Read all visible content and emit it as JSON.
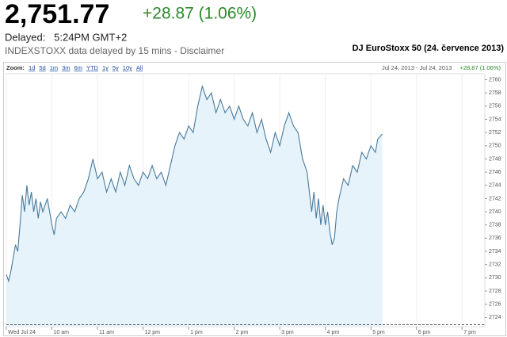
{
  "header": {
    "price": "2,751.77",
    "change": "+28.87 (1.06%)",
    "delayed": "Delayed:   5:24PM GMT+2",
    "disclaimer": "INDEXSTOXX data delayed by 15 mins - Disclaimer"
  },
  "toolbar": {
    "zoom_label": "Zoom:",
    "zoom_options": [
      "1d",
      "5d",
      "1m",
      "3m",
      "6m",
      "YTD",
      "1y",
      "5y",
      "10y",
      "All"
    ],
    "range": "Jul 24, 2013 - Jul 24, 2013",
    "change": "+28.87 (1.06%)"
  },
  "chart_data": {
    "type": "line",
    "title": "DJ EuroStoxx 50 (24. července 2013)",
    "color": "#4a7a9c",
    "fill": "#e6f3fb",
    "grid": true,
    "x": [
      9.0,
      9.05,
      9.1,
      9.15,
      9.2,
      9.25,
      9.3,
      9.35,
      9.4,
      9.45,
      9.5,
      9.55,
      9.6,
      9.65,
      9.7,
      9.75,
      9.8,
      9.9,
      10.0,
      10.05,
      10.1,
      10.2,
      10.3,
      10.4,
      10.5,
      10.6,
      10.7,
      10.8,
      10.9,
      11.0,
      11.1,
      11.2,
      11.3,
      11.4,
      11.5,
      11.6,
      11.7,
      11.8,
      11.9,
      12.0,
      12.1,
      12.2,
      12.3,
      12.4,
      12.5,
      12.6,
      12.7,
      12.8,
      12.9,
      13.0,
      13.1,
      13.2,
      13.3,
      13.4,
      13.5,
      13.6,
      13.7,
      13.8,
      13.9,
      14.0,
      14.1,
      14.2,
      14.3,
      14.4,
      14.5,
      14.6,
      14.7,
      14.8,
      14.9,
      15.0,
      15.1,
      15.2,
      15.3,
      15.4,
      15.5,
      15.6,
      15.7,
      15.75,
      15.8,
      15.85,
      15.9,
      15.95,
      16.0,
      16.05,
      16.1,
      16.15,
      16.2,
      16.25,
      16.3,
      16.4,
      16.5,
      16.6,
      16.7,
      16.8,
      16.9,
      17.0,
      17.1,
      17.15,
      17.25
    ],
    "values": [
      2730.5,
      2729.5,
      2731,
      2733,
      2735,
      2734,
      2738,
      2742.5,
      2740,
      2744,
      2741,
      2743,
      2740,
      2742,
      2739,
      2741.5,
      2740,
      2742,
      2738,
      2736.5,
      2739,
      2740,
      2739,
      2741,
      2740,
      2742,
      2743,
      2745,
      2748,
      2745,
      2746,
      2743,
      2745,
      2743,
      2746,
      2744,
      2747,
      2745,
      2744,
      2746,
      2745,
      2747,
      2745,
      2746,
      2744,
      2747,
      2750,
      2752,
      2751,
      2753,
      2752,
      2756,
      2759,
      2757,
      2758,
      2755,
      2757,
      2755,
      2756,
      2754,
      2756,
      2754,
      2753,
      2755,
      2752,
      2754,
      2751,
      2749,
      2752,
      2750,
      2753,
      2755,
      2753,
      2752,
      2748,
      2746,
      2740,
      2743,
      2739,
      2742,
      2738,
      2741,
      2738,
      2740,
      2737,
      2735,
      2736,
      2740,
      2742,
      2745,
      2744,
      2747,
      2746,
      2749,
      2748,
      2750,
      2749,
      2751,
      2751.77
    ],
    "previous_close": 2722.9,
    "xlim": [
      9,
      19.5
    ],
    "xticks": [
      {
        "value": 9,
        "label": "Wed Jul 24"
      },
      {
        "value": 10,
        "label": "10 am"
      },
      {
        "value": 11,
        "label": "11 am"
      },
      {
        "value": 12,
        "label": "12 pm"
      },
      {
        "value": 13,
        "label": "1 pm"
      },
      {
        "value": 14,
        "label": "2 pm"
      },
      {
        "value": 15,
        "label": "3 pm"
      },
      {
        "value": 16,
        "label": "4 pm"
      },
      {
        "value": 17,
        "label": "5 pm"
      },
      {
        "value": 18,
        "label": "6 pm"
      },
      {
        "value": 19,
        "label": "7 pm"
      }
    ],
    "ylim": [
      2722.6,
      2760.9
    ],
    "yticks": [
      2724,
      2726,
      2728,
      2730,
      2732,
      2734,
      2736,
      2738,
      2740,
      2742,
      2744,
      2746,
      2748,
      2750,
      2752,
      2754,
      2756,
      2758,
      2760
    ]
  }
}
